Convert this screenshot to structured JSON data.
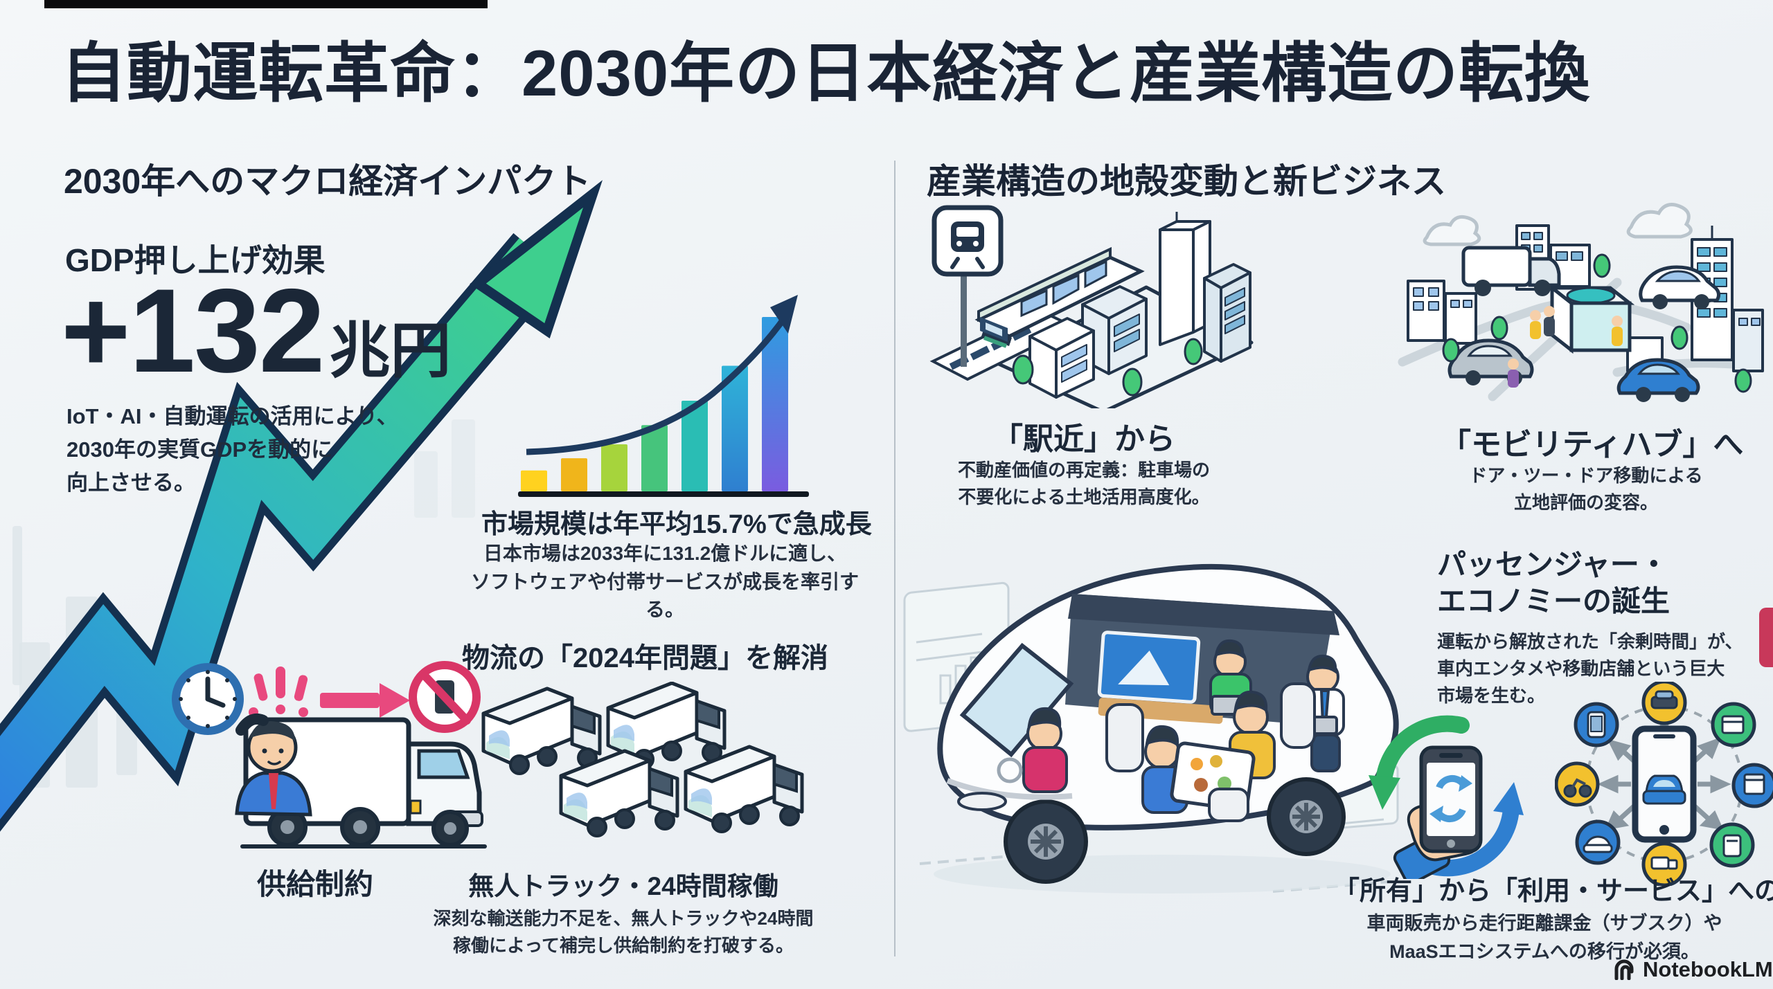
{
  "page": {
    "title": "自動運転革命：2030年の日本経済と産業構造の転換",
    "watermark": "NotebookLM"
  },
  "left": {
    "header": "2030年へのマクロ経済インパクト",
    "gdp": {
      "label": "GDP押し上げ効果",
      "value": "+132",
      "unit": "兆円",
      "desc_lines": [
        "IoT・AI・自動運転の活用により、",
        "2030年の実質GDPを動的に",
        "向上させる。"
      ]
    },
    "market": {
      "heading": "市場規模は年平均15.7%で急成長",
      "body_lines": [
        "日本市場は2033年に131.2億ドルに適し、",
        "ソフトウェアや付帯サービスが成長を率引する。"
      ]
    },
    "logistics": {
      "heading": "物流の「2024年問題」を解消",
      "sub_heading": "無人トラック・24時間稼働",
      "body_lines": [
        "深刻な輸送能力不足を、無人トラックや24時間",
        "稼働によって補完し供給制約を打破する。"
      ],
      "constraint_label": "供給制約"
    }
  },
  "right": {
    "header": "産業構造の地殻変動と新ビジネス",
    "station": {
      "heading": "「駅近」から",
      "body_lines": [
        "不動産価値の再定義：駐車場の",
        "不要化による土地活用高度化。"
      ]
    },
    "hub": {
      "heading": "「モビリティハブ」へ",
      "body_lines": [
        "ドア・ツー・ドア移動による",
        "立地評価の変容。"
      ]
    },
    "passenger": {
      "heading_lines": [
        "パッセンジャー・",
        "エコノミーの誕生"
      ],
      "body_lines": [
        "運転から解放された「余剰時間」が、",
        "車内エンタメや移動店舗という巨大",
        "市場を生む。"
      ]
    },
    "ownership": {
      "heading": "「所有」から「利用・サービス」への転換",
      "body_lines": [
        "車両販売から走行距離課金（サブスク）や",
        "MaaSエコシステムへの移行が必須。"
      ]
    }
  },
  "chart_data": {
    "type": "bar",
    "title": "市場規模は年平均15.7%で急成長",
    "categories": [
      "1",
      "2",
      "3",
      "4",
      "5",
      "6",
      "7"
    ],
    "values": [
      12,
      19,
      27,
      38,
      52,
      72,
      100
    ],
    "colors": [
      "#ffd21f",
      "#f0b51b",
      "#a6d43c",
      "#46c47c",
      "#2abdb4",
      "#2f96dc",
      "#5f7ce4"
    ],
    "xlabel": "",
    "ylabel": "",
    "ylim": [
      0,
      100
    ],
    "grid": false,
    "legend": "none",
    "annotation": "exponential growth arrow above bars"
  },
  "colors": {
    "ink": "#1a2435",
    "arrow_blue": "#2e7fe0",
    "arrow_green": "#3ecf8e",
    "accent_pink": "#e8497e",
    "accent_red": "#d93667",
    "teal": "#35c0c0"
  }
}
